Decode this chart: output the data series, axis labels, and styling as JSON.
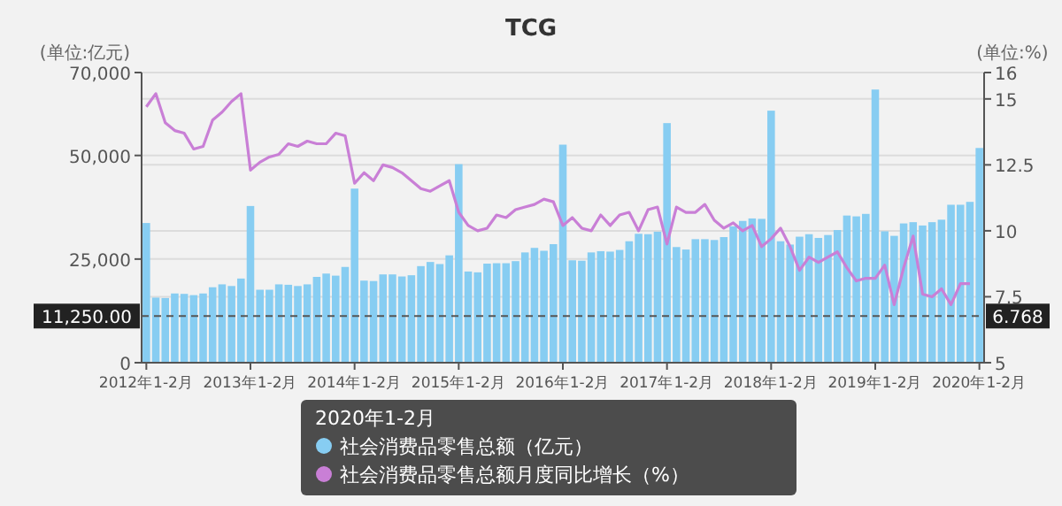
{
  "chart_data": {
    "type": "bar",
    "title": "TCG",
    "ylabel": "(单位:亿元)",
    "y2label": "(单位:%)",
    "legend": "bottom",
    "legend_title": "2020年1-2月",
    "grid": true,
    "categories": [
      "2012年1-2月",
      null,
      null,
      null,
      null,
      null,
      null,
      null,
      null,
      null,
      null,
      "2013年1-2月",
      null,
      null,
      null,
      null,
      null,
      null,
      null,
      null,
      null,
      null,
      "2014年1-2月",
      null,
      null,
      null,
      null,
      null,
      null,
      null,
      null,
      null,
      null,
      "2015年1-2月",
      null,
      null,
      null,
      null,
      null,
      null,
      null,
      null,
      null,
      null,
      "2016年1-2月",
      null,
      null,
      null,
      null,
      null,
      null,
      null,
      null,
      null,
      null,
      "2017年1-2月",
      null,
      null,
      null,
      null,
      null,
      null,
      null,
      null,
      null,
      null,
      "2018年1-2月",
      null,
      null,
      null,
      null,
      null,
      null,
      null,
      null,
      null,
      null,
      "2019年1-2月",
      null,
      null,
      null,
      null,
      null,
      null,
      null,
      null,
      null,
      null,
      "2020年1-2月"
    ],
    "series": [
      {
        "name": "社会消费品零售总额（亿元）",
        "color": "#87cdf2",
        "values": [
          33700,
          15700,
          15600,
          16700,
          16600,
          16300,
          16700,
          18200,
          18900,
          18500,
          20300,
          37800,
          17600,
          17600,
          18900,
          18800,
          18500,
          18900,
          20700,
          21500,
          21000,
          23100,
          42000,
          19800,
          19700,
          21300,
          21300,
          20800,
          21100,
          23300,
          24300,
          23800,
          25900,
          47900,
          22000,
          21800,
          23900,
          24000,
          24000,
          24500,
          26600,
          27700,
          27000,
          28600,
          52600,
          24700,
          24600,
          26600,
          26900,
          26800,
          27200,
          29300,
          31100,
          31000,
          31600,
          57800,
          27900,
          27300,
          29800,
          29800,
          29600,
          30300,
          32900,
          34200,
          34800,
          34700,
          60800,
          29300,
          28500,
          30400,
          31000,
          30100,
          30800,
          32000,
          35500,
          35300,
          35900,
          65900,
          31700,
          30600,
          33600,
          33900,
          33100,
          33900,
          34500,
          38100,
          38100,
          38800,
          51800
        ]
      },
      {
        "name": "社会消费品零售总额月度同比增长（%）",
        "type": "line",
        "axis": "y2",
        "color": "#c97fd6",
        "values": [
          14.7,
          15.2,
          14.1,
          13.8,
          13.7,
          13.1,
          13.2,
          14.2,
          14.5,
          14.9,
          15.2,
          12.3,
          12.6,
          12.8,
          12.9,
          13.3,
          13.2,
          13.4,
          13.3,
          13.3,
          13.7,
          13.6,
          11.8,
          12.2,
          11.9,
          12.5,
          12.4,
          12.2,
          11.9,
          11.6,
          11.5,
          11.7,
          11.9,
          10.7,
          10.2,
          10.0,
          10.1,
          10.6,
          10.5,
          10.8,
          10.9,
          11.0,
          11.2,
          11.1,
          10.2,
          10.5,
          10.1,
          10.0,
          10.6,
          10.2,
          10.6,
          10.7,
          10.0,
          10.8,
          10.9,
          9.5,
          10.9,
          10.7,
          10.7,
          11.0,
          10.4,
          10.1,
          10.3,
          10.0,
          10.2,
          9.4,
          9.7,
          10.1,
          9.4,
          8.5,
          9.0,
          8.8,
          9.0,
          9.2,
          8.6,
          8.1,
          8.2,
          8.2,
          8.7,
          7.2,
          8.6,
          9.8,
          7.6,
          7.5,
          7.8,
          7.2,
          8.0,
          8.0,
          null
        ]
      }
    ],
    "ylim": [
      0,
      70000
    ],
    "yticks": [
      0,
      {
        "value": 25000,
        "label": "25,000"
      },
      {
        "value": 50000,
        "label": "50,000"
      },
      {
        "value": 70000,
        "label": "70,000"
      }
    ],
    "y2lim": [
      5,
      16
    ],
    "y2ticks": [
      5,
      7.5,
      10,
      12.5,
      15,
      16
    ],
    "ref_lines": [
      {
        "axis": "y",
        "value": 11250,
        "label": "11,250.00",
        "line_style": "dashed"
      }
    ],
    "annotations": [
      "6.768"
    ]
  }
}
